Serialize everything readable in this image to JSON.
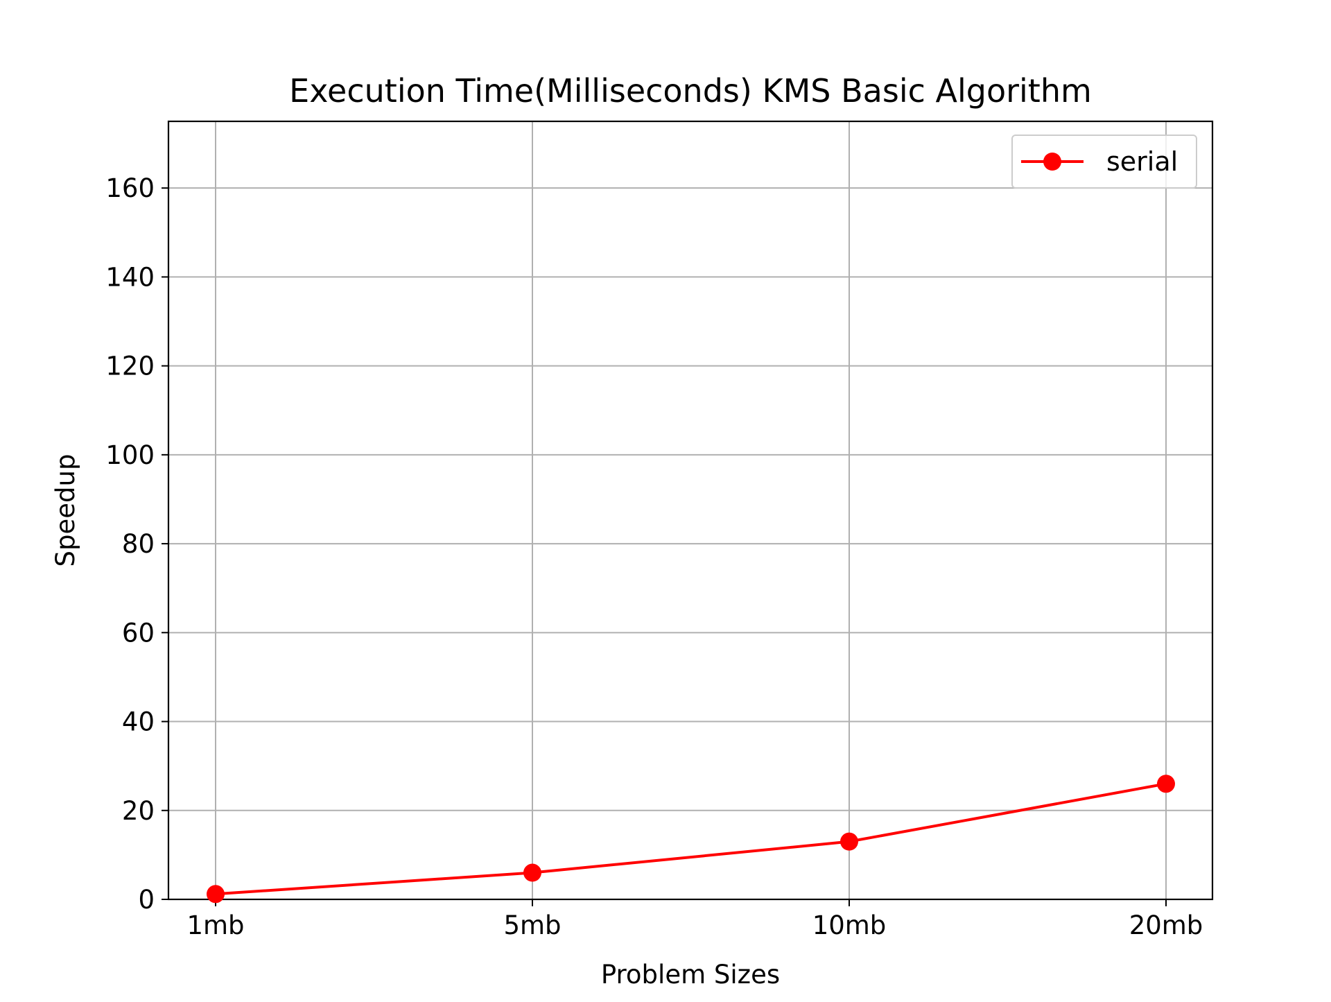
{
  "chart_data": {
    "type": "line",
    "title": "Execution Time(Milliseconds)  KMS Basic Algorithm",
    "xlabel": "Problem Sizes",
    "ylabel": "Speedup",
    "categories": [
      "1mb",
      "5mb",
      "10mb",
      "20mb"
    ],
    "yticks": [
      "0",
      "20",
      "40",
      "60",
      "80",
      "100",
      "120",
      "140",
      "160"
    ],
    "ylim": [
      0,
      175
    ],
    "grid": true,
    "legend_position": "top-right",
    "series": [
      {
        "name": "serial",
        "values": [
          1.2,
          6.0,
          13.0,
          26.0
        ],
        "color": "#ff0000",
        "marker": "circle"
      }
    ]
  },
  "colors": {
    "grid": "#b0b0b0",
    "axes": "#000000",
    "legend_border": "#cccccc"
  }
}
